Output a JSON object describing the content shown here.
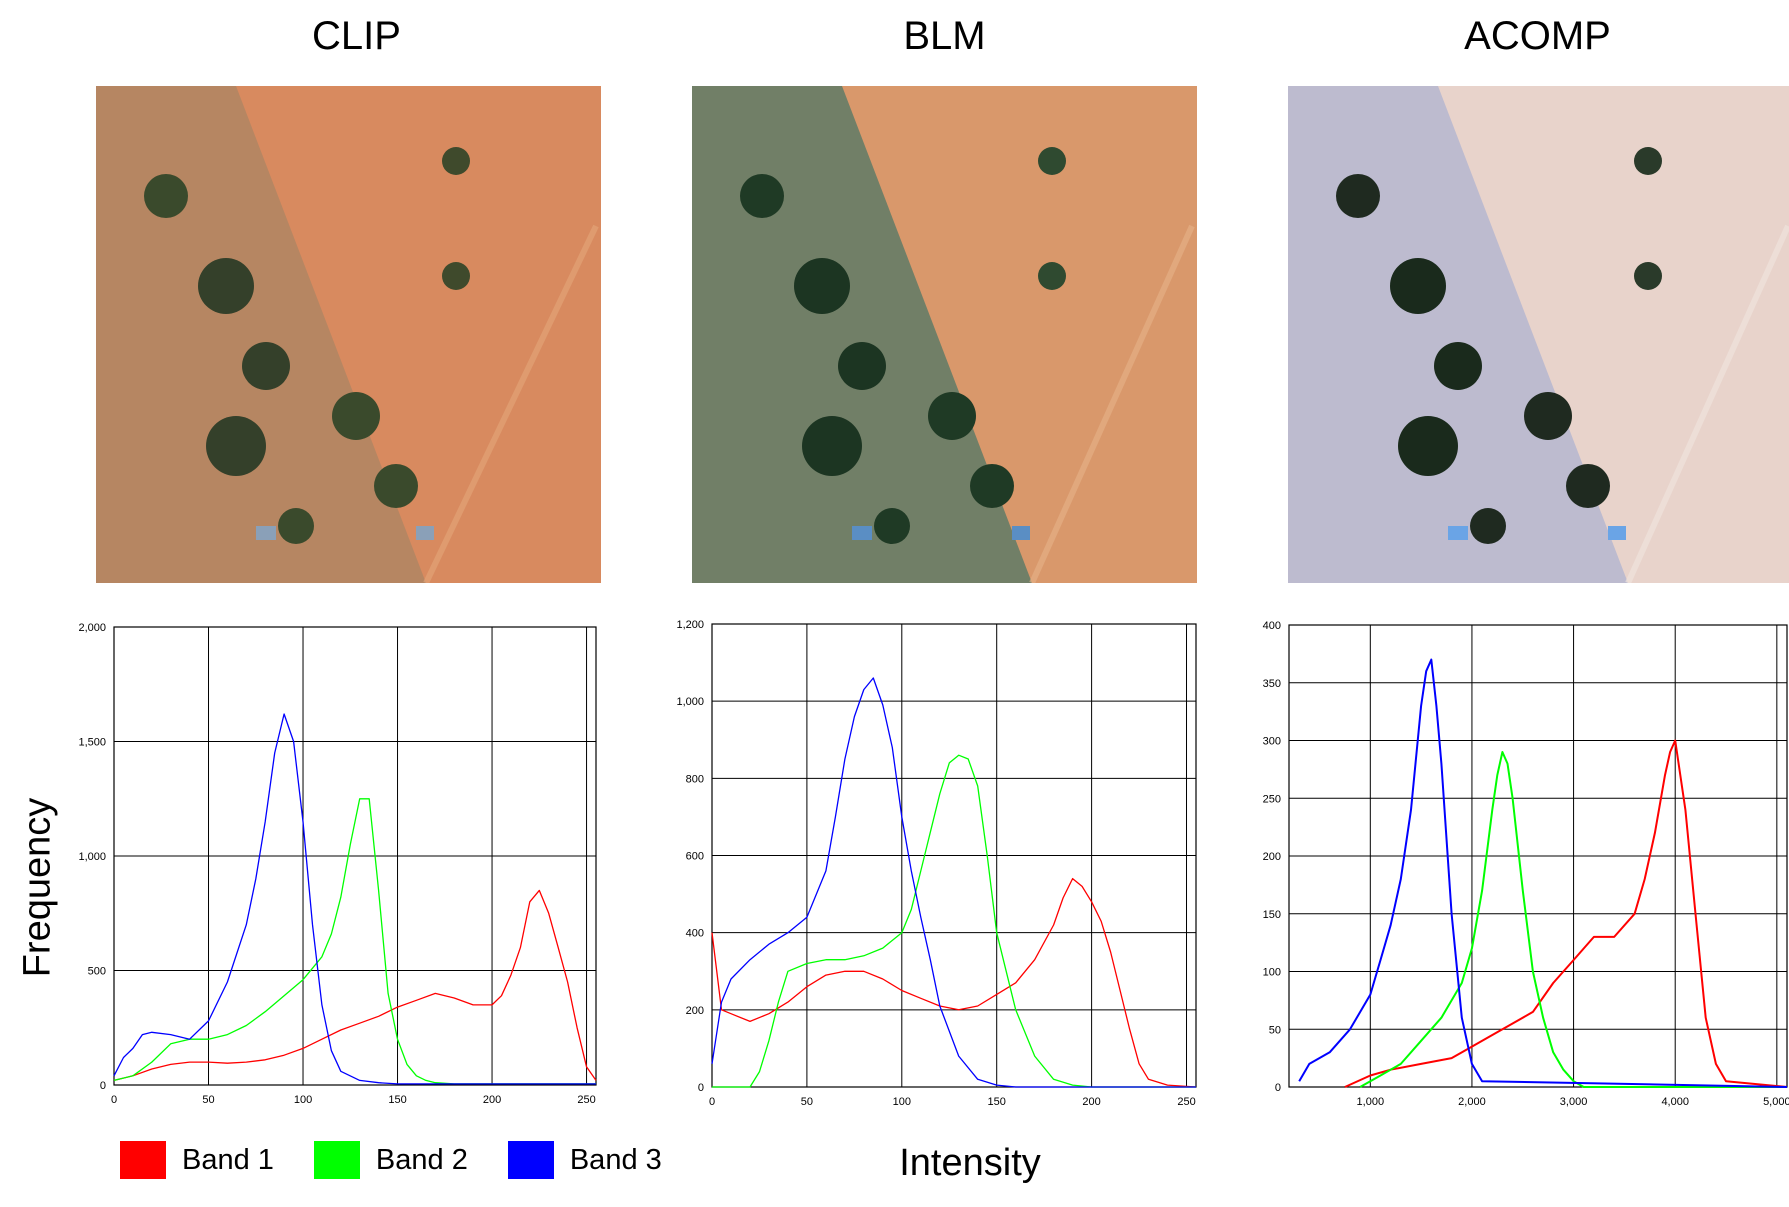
{
  "panels": [
    {
      "title": "CLIP",
      "image_tint": "#d98a5e"
    },
    {
      "title": "BLM",
      "image_tint": "#6e8a6a"
    },
    {
      "title": "ACOMP",
      "image_tint": "#d3c3cc"
    }
  ],
  "axis_labels": {
    "y": "Frequency",
    "x": "Intensity"
  },
  "legend": [
    {
      "label": "Band 1",
      "color": "#ff0000"
    },
    {
      "label": "Band 2",
      "color": "#00ff00"
    },
    {
      "label": "Band 3",
      "color": "#0000ff"
    }
  ],
  "chart_data": [
    {
      "type": "line",
      "xlim": [
        0,
        255
      ],
      "ylim": [
        0,
        2000
      ],
      "x_ticks": [
        0,
        50,
        100,
        150,
        200,
        250
      ],
      "x_tick_labels": [
        "0",
        "50",
        "100",
        "150",
        "200",
        "250"
      ],
      "y_ticks": [
        0,
        500,
        1000,
        1500,
        2000
      ],
      "y_tick_labels": [
        "0",
        "500",
        "1,000",
        "1,500",
        "2,000"
      ],
      "grid": true,
      "series": [
        {
          "name": "Band 1",
          "color": "#ff0000",
          "x": [
            0,
            10,
            20,
            30,
            40,
            50,
            60,
            70,
            80,
            90,
            100,
            110,
            120,
            130,
            140,
            150,
            160,
            170,
            180,
            190,
            200,
            205,
            210,
            215,
            220,
            225,
            230,
            235,
            240,
            245,
            250,
            255
          ],
          "y": [
            20,
            40,
            70,
            90,
            100,
            100,
            95,
            100,
            110,
            130,
            160,
            200,
            240,
            270,
            300,
            340,
            370,
            400,
            380,
            350,
            350,
            390,
            480,
            600,
            800,
            850,
            750,
            600,
            450,
            250,
            80,
            20
          ]
        },
        {
          "name": "Band 2",
          "color": "#00ff00",
          "x": [
            0,
            10,
            20,
            30,
            40,
            50,
            60,
            70,
            80,
            90,
            100,
            110,
            115,
            120,
            125,
            130,
            135,
            140,
            145,
            150,
            155,
            160,
            165,
            170,
            180,
            200,
            255
          ],
          "y": [
            20,
            40,
            100,
            180,
            200,
            200,
            220,
            260,
            320,
            390,
            460,
            560,
            660,
            820,
            1050,
            1250,
            1250,
            850,
            400,
            200,
            90,
            40,
            20,
            10,
            5,
            5,
            5
          ]
        },
        {
          "name": "Band 3",
          "color": "#0000ff",
          "x": [
            0,
            5,
            10,
            15,
            20,
            30,
            40,
            50,
            60,
            70,
            75,
            80,
            85,
            90,
            95,
            100,
            105,
            110,
            115,
            120,
            130,
            140,
            150,
            255
          ],
          "y": [
            40,
            120,
            160,
            220,
            230,
            220,
            200,
            280,
            450,
            700,
            900,
            1150,
            1450,
            1620,
            1500,
            1150,
            700,
            350,
            150,
            60,
            20,
            10,
            5,
            5
          ]
        }
      ]
    },
    {
      "type": "line",
      "xlim": [
        0,
        255
      ],
      "ylim": [
        0,
        1200
      ],
      "x_ticks": [
        0,
        50,
        100,
        150,
        200,
        250
      ],
      "x_tick_labels": [
        "0",
        "50",
        "100",
        "150",
        "200",
        "250"
      ],
      "y_ticks": [
        0,
        200,
        400,
        600,
        800,
        1000,
        1200
      ],
      "y_tick_labels": [
        "0",
        "200",
        "400",
        "600",
        "800",
        "1,000",
        "1,200"
      ],
      "grid": true,
      "series": [
        {
          "name": "Band 1",
          "color": "#ff0000",
          "x": [
            0,
            5,
            10,
            20,
            30,
            40,
            50,
            60,
            70,
            80,
            90,
            100,
            110,
            120,
            130,
            140,
            150,
            160,
            170,
            180,
            185,
            190,
            195,
            200,
            205,
            210,
            215,
            220,
            225,
            230,
            240,
            255
          ],
          "y": [
            400,
            200,
            190,
            170,
            190,
            220,
            260,
            290,
            300,
            300,
            280,
            250,
            230,
            210,
            200,
            210,
            240,
            270,
            330,
            420,
            490,
            540,
            520,
            480,
            430,
            350,
            250,
            150,
            60,
            20,
            5,
            0
          ]
        },
        {
          "name": "Band 2",
          "color": "#00ff00",
          "x": [
            0,
            20,
            25,
            30,
            35,
            40,
            50,
            60,
            70,
            80,
            90,
            100,
            105,
            110,
            115,
            120,
            125,
            130,
            135,
            140,
            145,
            150,
            155,
            160,
            170,
            180,
            190,
            200,
            255
          ],
          "y": [
            0,
            0,
            40,
            120,
            220,
            300,
            320,
            330,
            330,
            340,
            360,
            400,
            460,
            560,
            660,
            760,
            840,
            860,
            850,
            780,
            600,
            400,
            300,
            200,
            80,
            20,
            5,
            0,
            0
          ]
        },
        {
          "name": "Band 3",
          "color": "#0000ff",
          "x": [
            0,
            5,
            10,
            20,
            30,
            40,
            50,
            60,
            65,
            70,
            75,
            80,
            85,
            90,
            95,
            100,
            105,
            110,
            115,
            120,
            130,
            140,
            150,
            160,
            255
          ],
          "y": [
            60,
            220,
            280,
            330,
            370,
            400,
            440,
            560,
            700,
            850,
            960,
            1030,
            1060,
            990,
            880,
            700,
            560,
            440,
            330,
            210,
            80,
            20,
            5,
            0,
            0
          ]
        }
      ]
    },
    {
      "type": "line",
      "xlim": [
        200,
        5100
      ],
      "ylim": [
        0,
        400
      ],
      "x_ticks": [
        1000,
        2000,
        3000,
        4000,
        5000
      ],
      "x_tick_labels": [
        "1,000",
        "2,000",
        "3,000",
        "4,000",
        "5,000"
      ],
      "y_ticks": [
        0,
        50,
        100,
        150,
        200,
        250,
        300,
        350,
        400
      ],
      "y_tick_labels": [
        "0",
        "50",
        "100",
        "150",
        "200",
        "250",
        "300",
        "350",
        "400"
      ],
      "grid": true,
      "series": [
        {
          "name": "Band 1",
          "color": "#ff0000",
          "x": [
            750,
            1000,
            1200,
            1500,
            1800,
            2000,
            2200,
            2400,
            2600,
            2800,
            3000,
            3200,
            3400,
            3600,
            3700,
            3800,
            3900,
            3950,
            4000,
            4050,
            4100,
            4200,
            4300,
            4400,
            4500,
            5100
          ],
          "y": [
            0,
            10,
            15,
            20,
            25,
            35,
            45,
            55,
            65,
            90,
            110,
            130,
            130,
            150,
            180,
            220,
            270,
            290,
            300,
            270,
            240,
            150,
            60,
            20,
            5,
            0
          ]
        },
        {
          "name": "Band 2",
          "color": "#00ff00",
          "x": [
            900,
            1100,
            1300,
            1500,
            1700,
            1900,
            2000,
            2100,
            2200,
            2250,
            2300,
            2350,
            2400,
            2500,
            2600,
            2700,
            2800,
            2900,
            3000,
            3100,
            5100
          ],
          "y": [
            0,
            10,
            20,
            40,
            60,
            90,
            120,
            170,
            240,
            270,
            290,
            280,
            250,
            170,
            100,
            60,
            30,
            15,
            5,
            0,
            0
          ]
        },
        {
          "name": "Band 3",
          "color": "#0000ff",
          "x": [
            300,
            400,
            600,
            800,
            1000,
            1100,
            1200,
            1300,
            1400,
            1500,
            1550,
            1600,
            1650,
            1700,
            1800,
            1900,
            2000,
            2100,
            5100
          ],
          "y": [
            5,
            20,
            30,
            50,
            80,
            110,
            140,
            180,
            240,
            330,
            360,
            370,
            330,
            280,
            150,
            60,
            20,
            5,
            0
          ]
        }
      ]
    }
  ]
}
